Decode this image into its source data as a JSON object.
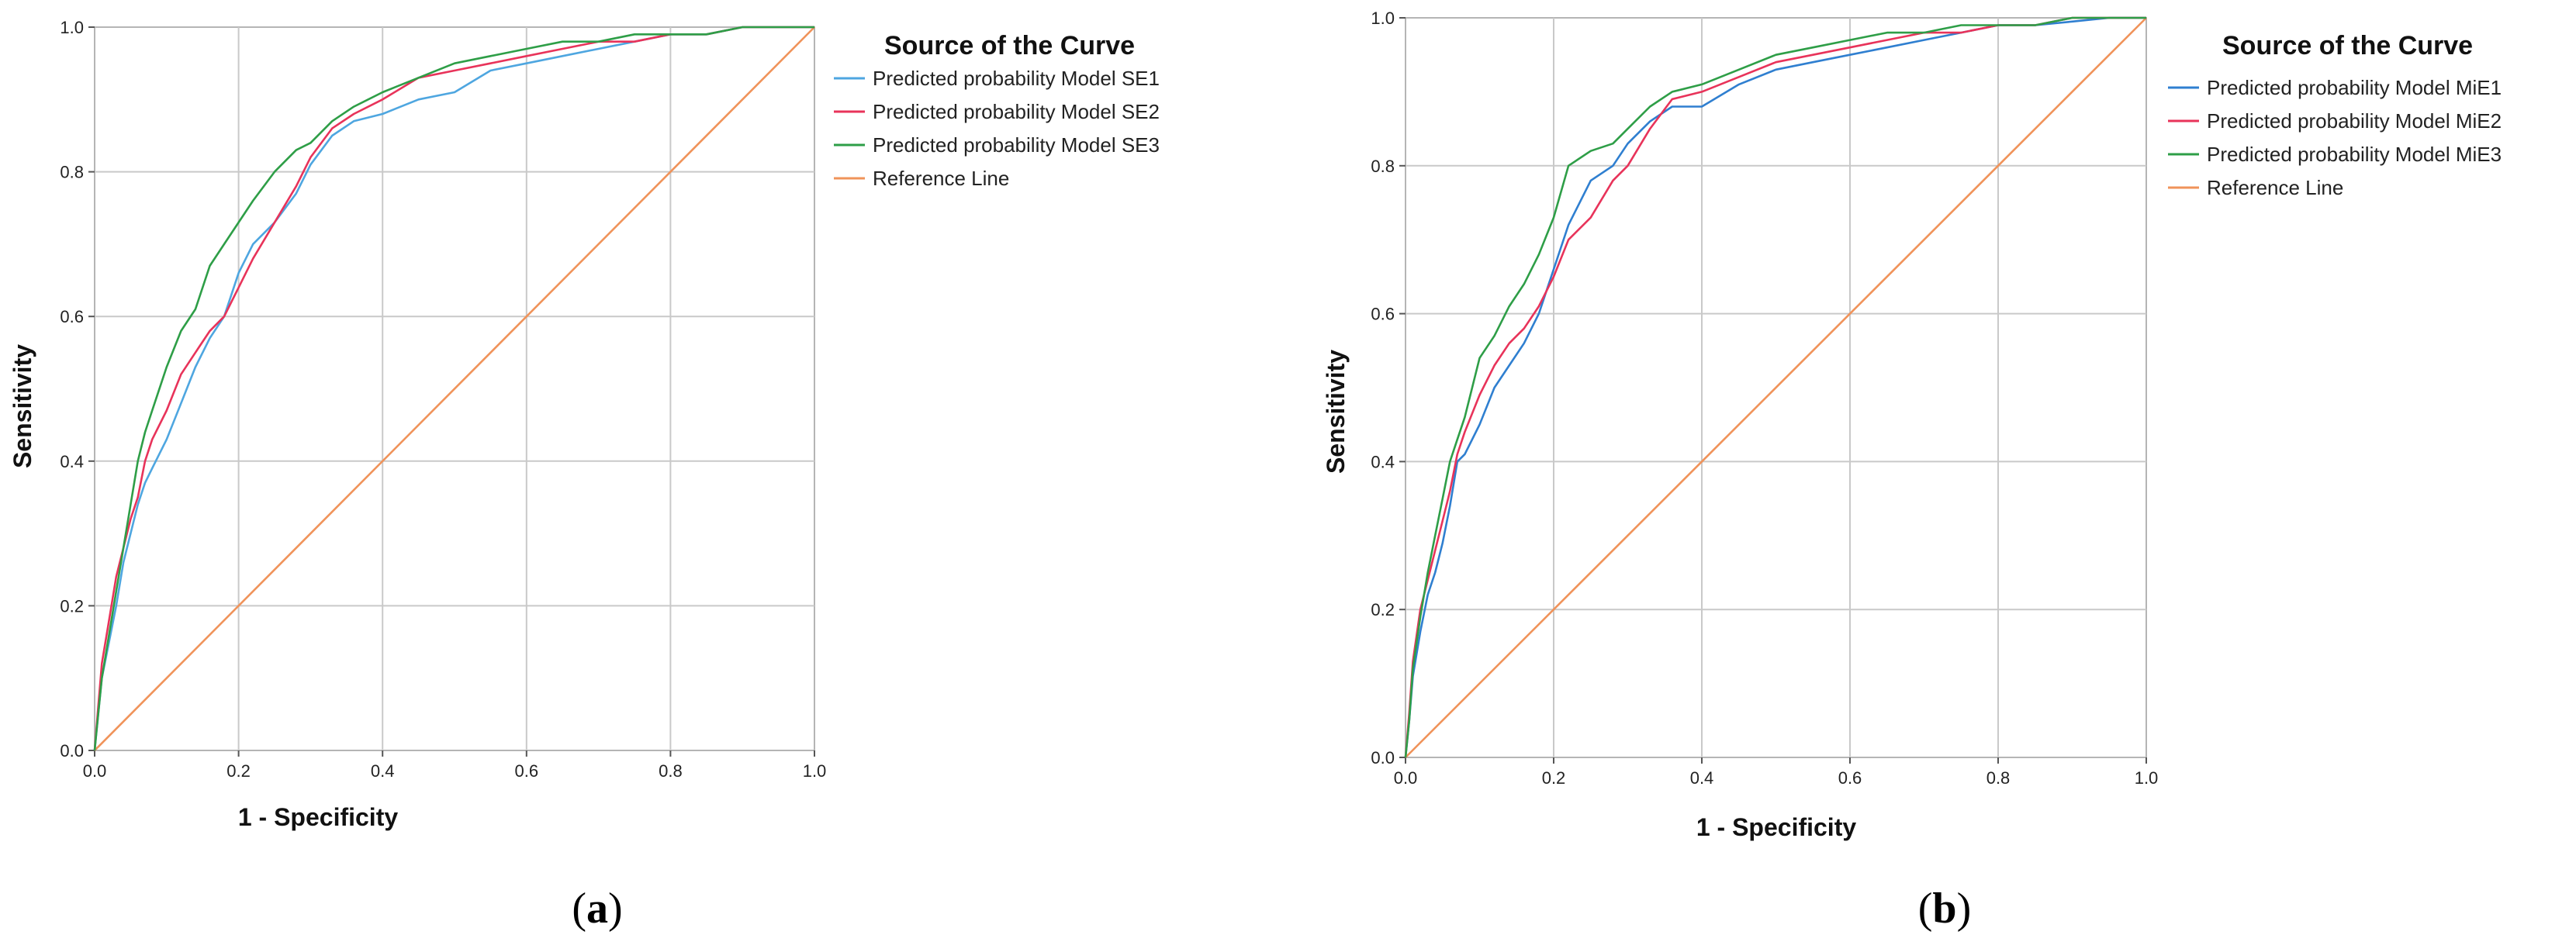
{
  "chart_data": [
    {
      "type": "line",
      "panel_label": "a",
      "title": "",
      "xlabel": "1 - Specificity",
      "ylabel": "Sensitivity",
      "xlim": [
        0,
        1
      ],
      "ylim": [
        0,
        1
      ],
      "xticks": [
        "0.0",
        "0.2",
        "0.4",
        "0.6",
        "0.8",
        "1.0"
      ],
      "yticks": [
        "0.0",
        "0.2",
        "0.4",
        "0.6",
        "0.8",
        "1.0"
      ],
      "grid": true,
      "legend_title": "Source of the Curve",
      "legend_position": "right-outside-top",
      "series": [
        {
          "name": "Predicted probability Model SE1",
          "color": "#4ea6e0",
          "x": [
            0,
            0.005,
            0.01,
            0.02,
            0.03,
            0.04,
            0.05,
            0.06,
            0.07,
            0.08,
            0.1,
            0.12,
            0.14,
            0.16,
            0.18,
            0.2,
            0.22,
            0.25,
            0.28,
            0.3,
            0.33,
            0.36,
            0.4,
            0.45,
            0.5,
            0.55,
            0.6,
            0.65,
            0.7,
            0.75,
            0.8,
            0.85,
            0.9,
            0.95,
            1.0
          ],
          "y": [
            0,
            0.05,
            0.1,
            0.15,
            0.2,
            0.26,
            0.3,
            0.34,
            0.37,
            0.39,
            0.43,
            0.48,
            0.53,
            0.57,
            0.6,
            0.66,
            0.7,
            0.73,
            0.77,
            0.81,
            0.85,
            0.87,
            0.88,
            0.9,
            0.91,
            0.94,
            0.95,
            0.96,
            0.97,
            0.98,
            0.99,
            0.99,
            1.0,
            1.0,
            1.0
          ]
        },
        {
          "name": "Predicted probability Model SE2",
          "color": "#e8335a",
          "x": [
            0,
            0.005,
            0.01,
            0.02,
            0.03,
            0.04,
            0.05,
            0.06,
            0.07,
            0.08,
            0.1,
            0.12,
            0.14,
            0.16,
            0.18,
            0.2,
            0.22,
            0.25,
            0.28,
            0.3,
            0.33,
            0.36,
            0.4,
            0.45,
            0.5,
            0.55,
            0.6,
            0.65,
            0.7,
            0.75,
            0.8,
            0.85,
            0.9,
            0.95,
            1.0
          ],
          "y": [
            0,
            0.06,
            0.12,
            0.18,
            0.24,
            0.28,
            0.32,
            0.35,
            0.4,
            0.43,
            0.47,
            0.52,
            0.55,
            0.58,
            0.6,
            0.64,
            0.68,
            0.73,
            0.78,
            0.82,
            0.86,
            0.88,
            0.9,
            0.93,
            0.94,
            0.95,
            0.96,
            0.97,
            0.98,
            0.98,
            0.99,
            0.99,
            1.0,
            1.0,
            1.0
          ]
        },
        {
          "name": "Predicted probability Model SE3",
          "color": "#2e9e47",
          "x": [
            0,
            0.005,
            0.01,
            0.02,
            0.03,
            0.04,
            0.05,
            0.06,
            0.07,
            0.08,
            0.1,
            0.12,
            0.14,
            0.16,
            0.18,
            0.2,
            0.22,
            0.25,
            0.28,
            0.3,
            0.33,
            0.36,
            0.4,
            0.45,
            0.5,
            0.55,
            0.6,
            0.65,
            0.7,
            0.75,
            0.8,
            0.85,
            0.9,
            0.95,
            1.0
          ],
          "y": [
            0,
            0.05,
            0.1,
            0.16,
            0.22,
            0.28,
            0.34,
            0.4,
            0.44,
            0.47,
            0.53,
            0.58,
            0.61,
            0.67,
            0.7,
            0.73,
            0.76,
            0.8,
            0.83,
            0.84,
            0.87,
            0.89,
            0.91,
            0.93,
            0.95,
            0.96,
            0.97,
            0.98,
            0.98,
            0.99,
            0.99,
            0.99,
            1.0,
            1.0,
            1.0
          ]
        },
        {
          "name": "Reference Line",
          "color": "#f0935a",
          "x": [
            0,
            1
          ],
          "y": [
            0,
            1
          ]
        }
      ]
    },
    {
      "type": "line",
      "panel_label": "b",
      "title": "",
      "xlabel": "1 - Specificity",
      "ylabel": "Sensitivity",
      "xlim": [
        0,
        1
      ],
      "ylim": [
        0,
        1
      ],
      "xticks": [
        "0.0",
        "0.2",
        "0.4",
        "0.6",
        "0.8",
        "1.0"
      ],
      "yticks": [
        "0.0",
        "0.2",
        "0.4",
        "0.6",
        "0.8",
        "1.0"
      ],
      "grid": true,
      "legend_title": "Source of the Curve",
      "legend_position": "right-outside-top",
      "series": [
        {
          "name": "Predicted probability Model MiE1",
          "color": "#2f7fd0",
          "x": [
            0,
            0.005,
            0.01,
            0.02,
            0.03,
            0.04,
            0.05,
            0.06,
            0.07,
            0.08,
            0.1,
            0.12,
            0.14,
            0.16,
            0.18,
            0.2,
            0.22,
            0.25,
            0.28,
            0.3,
            0.33,
            0.36,
            0.4,
            0.45,
            0.5,
            0.55,
            0.6,
            0.65,
            0.7,
            0.75,
            0.8,
            0.85,
            0.9,
            0.95,
            1.0
          ],
          "y": [
            0,
            0.05,
            0.11,
            0.17,
            0.22,
            0.25,
            0.29,
            0.34,
            0.4,
            0.41,
            0.45,
            0.5,
            0.53,
            0.56,
            0.6,
            0.66,
            0.72,
            0.78,
            0.8,
            0.83,
            0.86,
            0.88,
            0.88,
            0.91,
            0.93,
            0.94,
            0.95,
            0.96,
            0.97,
            0.98,
            0.99,
            0.99,
            0.995,
            1.0,
            1.0
          ]
        },
        {
          "name": "Predicted probability Model MiE2",
          "color": "#e8335a",
          "x": [
            0,
            0.005,
            0.01,
            0.02,
            0.03,
            0.04,
            0.05,
            0.06,
            0.07,
            0.08,
            0.1,
            0.12,
            0.14,
            0.16,
            0.18,
            0.2,
            0.22,
            0.25,
            0.28,
            0.3,
            0.33,
            0.36,
            0.4,
            0.45,
            0.5,
            0.55,
            0.6,
            0.65,
            0.7,
            0.75,
            0.8,
            0.85,
            0.9,
            0.95,
            1.0
          ],
          "y": [
            0,
            0.06,
            0.13,
            0.2,
            0.24,
            0.28,
            0.32,
            0.36,
            0.41,
            0.44,
            0.49,
            0.53,
            0.56,
            0.58,
            0.61,
            0.65,
            0.7,
            0.73,
            0.78,
            0.8,
            0.85,
            0.89,
            0.9,
            0.92,
            0.94,
            0.95,
            0.96,
            0.97,
            0.98,
            0.98,
            0.99,
            0.99,
            1.0,
            1.0,
            1.0
          ]
        },
        {
          "name": "Predicted probability Model MiE3",
          "color": "#2e9e47",
          "x": [
            0,
            0.005,
            0.01,
            0.02,
            0.03,
            0.04,
            0.05,
            0.06,
            0.07,
            0.08,
            0.1,
            0.12,
            0.14,
            0.16,
            0.18,
            0.2,
            0.22,
            0.25,
            0.28,
            0.3,
            0.33,
            0.36,
            0.4,
            0.45,
            0.5,
            0.55,
            0.6,
            0.65,
            0.7,
            0.75,
            0.8,
            0.85,
            0.9,
            0.95,
            1.0
          ],
          "y": [
            0,
            0.05,
            0.12,
            0.19,
            0.25,
            0.3,
            0.35,
            0.4,
            0.43,
            0.46,
            0.54,
            0.57,
            0.61,
            0.64,
            0.68,
            0.73,
            0.8,
            0.82,
            0.83,
            0.85,
            0.88,
            0.9,
            0.91,
            0.93,
            0.95,
            0.96,
            0.97,
            0.98,
            0.98,
            0.99,
            0.99,
            0.99,
            1.0,
            1.0,
            1.0
          ]
        },
        {
          "name": "Reference Line",
          "color": "#f0935a",
          "x": [
            0,
            1
          ],
          "y": [
            0,
            1
          ]
        }
      ]
    }
  ],
  "captions": {
    "a": {
      "open": "(",
      "letter": "a",
      "close": ")"
    },
    "b": {
      "open": "(",
      "letter": "b",
      "close": ")"
    }
  }
}
